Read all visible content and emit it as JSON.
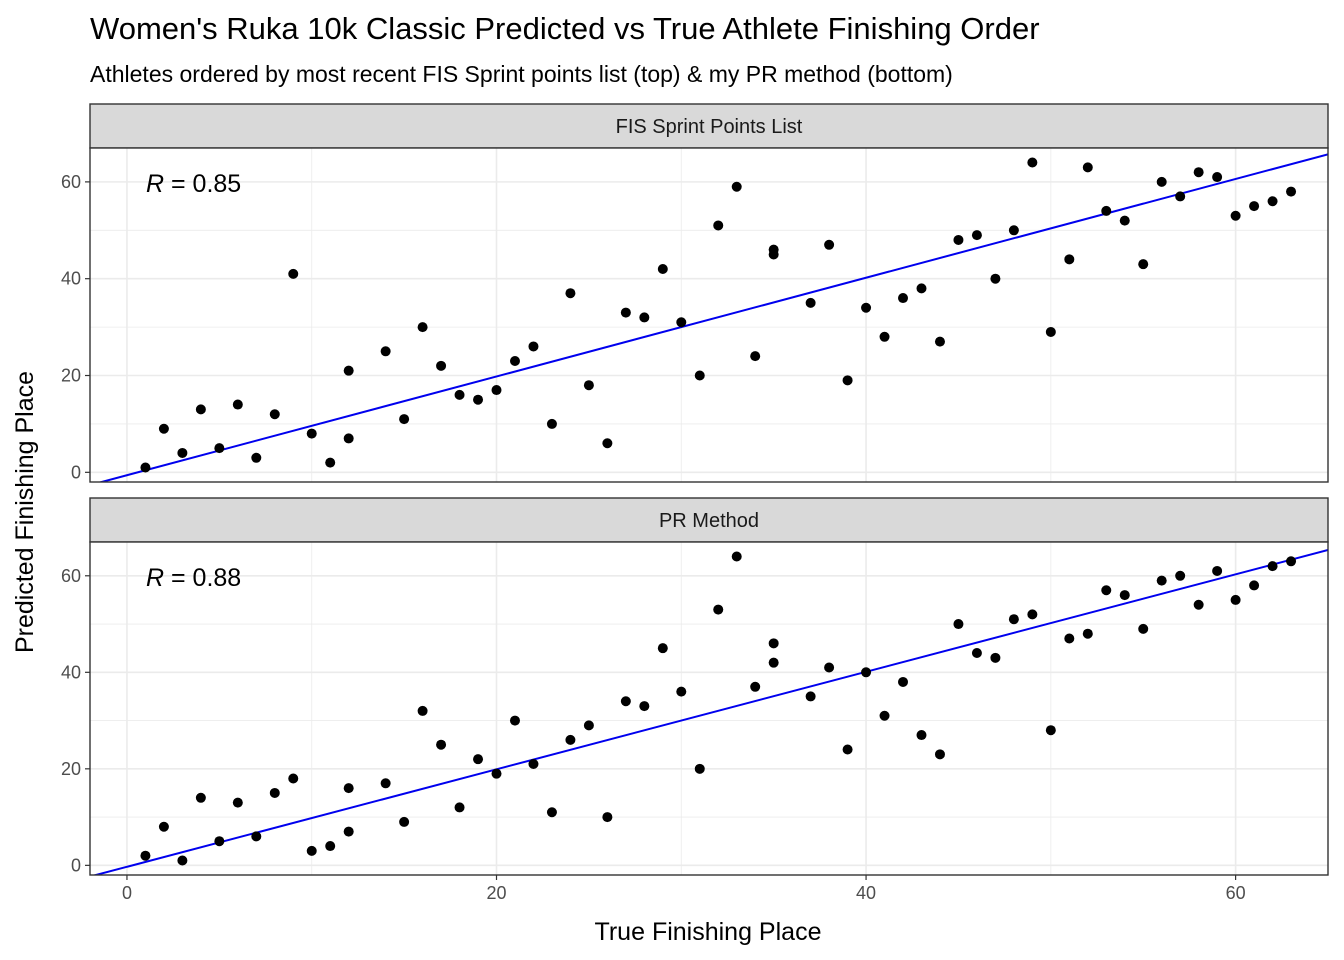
{
  "title": "Women's Ruka 10k Classic Predicted vs True Athlete Finishing Order",
  "subtitle": "Athletes ordered by most recent FIS Sprint points list (top) & my PR method (bottom)",
  "colors": {
    "points": "#000000",
    "fit_line": "#0000ee",
    "strip": "#d9d9d9",
    "grid": "#ebebeb"
  },
  "chart_data": [
    {
      "type": "scatter",
      "panel": "FIS Sprint Points List",
      "xlabel": "True Finishing Place",
      "ylabel": "Predicted Finishing Place",
      "xlim": [
        -2,
        65
      ],
      "ylim": [
        -2,
        67
      ],
      "x_ticks": [
        0,
        20,
        40,
        60
      ],
      "y_ticks": [
        0,
        20,
        40,
        60
      ],
      "grid": true,
      "annotation": {
        "var": "R",
        "text": " = 0.85"
      },
      "fit_line": {
        "intercept": -0.6,
        "slope": 1.02
      },
      "points": [
        [
          1,
          1
        ],
        [
          2,
          9
        ],
        [
          3,
          4
        ],
        [
          4,
          13
        ],
        [
          5,
          5
        ],
        [
          6,
          14
        ],
        [
          7,
          3
        ],
        [
          8,
          12
        ],
        [
          9,
          41
        ],
        [
          10,
          8
        ],
        [
          11,
          2
        ],
        [
          12,
          21
        ],
        [
          12,
          7
        ],
        [
          14,
          25
        ],
        [
          15,
          11
        ],
        [
          16,
          30
        ],
        [
          17,
          22
        ],
        [
          18,
          16
        ],
        [
          19,
          15
        ],
        [
          20,
          17
        ],
        [
          21,
          23
        ],
        [
          22,
          26
        ],
        [
          23,
          10
        ],
        [
          24,
          37
        ],
        [
          25,
          18
        ],
        [
          26,
          6
        ],
        [
          27,
          33
        ],
        [
          28,
          32
        ],
        [
          29,
          42
        ],
        [
          30,
          31
        ],
        [
          31,
          20
        ],
        [
          32,
          51
        ],
        [
          33,
          59
        ],
        [
          34,
          24
        ],
        [
          35,
          46
        ],
        [
          35,
          45
        ],
        [
          37,
          35
        ],
        [
          38,
          47
        ],
        [
          39,
          19
        ],
        [
          40,
          34
        ],
        [
          41,
          28
        ],
        [
          42,
          36
        ],
        [
          43,
          38
        ],
        [
          44,
          27
        ],
        [
          45,
          48
        ],
        [
          46,
          49
        ],
        [
          47,
          40
        ],
        [
          48,
          50
        ],
        [
          49,
          64
        ],
        [
          50,
          29
        ],
        [
          51,
          44
        ],
        [
          52,
          63
        ],
        [
          53,
          54
        ],
        [
          54,
          52
        ],
        [
          55,
          43
        ],
        [
          56,
          60
        ],
        [
          57,
          57
        ],
        [
          58,
          62
        ],
        [
          59,
          61
        ],
        [
          60,
          53
        ],
        [
          61,
          55
        ],
        [
          62,
          56
        ],
        [
          63,
          58
        ]
      ]
    },
    {
      "type": "scatter",
      "panel": "PR Method",
      "xlabel": "True Finishing Place",
      "ylabel": "Predicted Finishing Place",
      "xlim": [
        -2,
        65
      ],
      "ylim": [
        -2,
        67
      ],
      "x_ticks": [
        0,
        20,
        40,
        60
      ],
      "y_ticks": [
        0,
        20,
        40,
        60
      ],
      "grid": true,
      "annotation": {
        "var": "R",
        "text": " = 0.88"
      },
      "fit_line": {
        "intercept": -0.3,
        "slope": 1.01
      },
      "points": [
        [
          1,
          2
        ],
        [
          2,
          8
        ],
        [
          3,
          1
        ],
        [
          4,
          14
        ],
        [
          5,
          5
        ],
        [
          6,
          13
        ],
        [
          7,
          6
        ],
        [
          8,
          15
        ],
        [
          9,
          18
        ],
        [
          10,
          3
        ],
        [
          11,
          4
        ],
        [
          12,
          16
        ],
        [
          12,
          7
        ],
        [
          14,
          17
        ],
        [
          15,
          9
        ],
        [
          16,
          32
        ],
        [
          17,
          25
        ],
        [
          18,
          12
        ],
        [
          19,
          22
        ],
        [
          20,
          19
        ],
        [
          21,
          30
        ],
        [
          22,
          21
        ],
        [
          23,
          11
        ],
        [
          24,
          26
        ],
        [
          25,
          29
        ],
        [
          26,
          10
        ],
        [
          27,
          34
        ],
        [
          28,
          33
        ],
        [
          29,
          45
        ],
        [
          30,
          36
        ],
        [
          31,
          20
        ],
        [
          32,
          53
        ],
        [
          33,
          64
        ],
        [
          34,
          37
        ],
        [
          35,
          46
        ],
        [
          35,
          42
        ],
        [
          37,
          35
        ],
        [
          38,
          41
        ],
        [
          39,
          24
        ],
        [
          40,
          40
        ],
        [
          41,
          31
        ],
        [
          42,
          38
        ],
        [
          43,
          27
        ],
        [
          44,
          23
        ],
        [
          45,
          50
        ],
        [
          46,
          44
        ],
        [
          47,
          43
        ],
        [
          48,
          51
        ],
        [
          49,
          52
        ],
        [
          50,
          28
        ],
        [
          51,
          47
        ],
        [
          52,
          48
        ],
        [
          53,
          57
        ],
        [
          54,
          56
        ],
        [
          55,
          49
        ],
        [
          56,
          59
        ],
        [
          57,
          60
        ],
        [
          58,
          54
        ],
        [
          59,
          61
        ],
        [
          60,
          55
        ],
        [
          61,
          58
        ],
        [
          62,
          62
        ],
        [
          63,
          63
        ]
      ]
    }
  ]
}
